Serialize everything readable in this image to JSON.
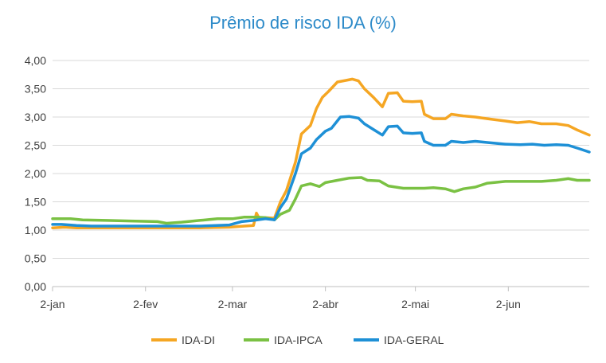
{
  "chart_data": {
    "type": "line",
    "title": "Prêmio de risco IDA (%)",
    "xlabel": "",
    "ylabel": "",
    "ylim": [
      0,
      4
    ],
    "yticks": [
      "0,00",
      "0,50",
      "1,00",
      "1,50",
      "2,00",
      "2,50",
      "3,00",
      "3,50",
      "4,00"
    ],
    "ytick_values": [
      0,
      0.5,
      1,
      1.5,
      2,
      2.5,
      3,
      3.5,
      4
    ],
    "xlim": [
      "2020-01-02",
      "2020-06-29"
    ],
    "xticks": [
      {
        "label": "2-jan",
        "date": "2020-01-02"
      },
      {
        "label": "2-fev",
        "date": "2020-02-02"
      },
      {
        "label": "2-mar",
        "date": "2020-03-02"
      },
      {
        "label": "2-abr",
        "date": "2020-04-02"
      },
      {
        "label": "2-mai",
        "date": "2020-05-02"
      },
      {
        "label": "2-jun",
        "date": "2020-06-02"
      }
    ],
    "grid": "horizontal",
    "legend_position": "bottom",
    "series": [
      {
        "name": "IDA-DI",
        "color": "#f5a623",
        "points": [
          [
            "2020-01-02",
            1.04
          ],
          [
            "2020-01-06",
            1.05
          ],
          [
            "2020-01-10",
            1.04
          ],
          [
            "2020-01-15",
            1.04
          ],
          [
            "2020-01-20",
            1.04
          ],
          [
            "2020-01-25",
            1.04
          ],
          [
            "2020-02-01",
            1.04
          ],
          [
            "2020-02-10",
            1.04
          ],
          [
            "2020-02-20",
            1.04
          ],
          [
            "2020-03-01",
            1.05
          ],
          [
            "2020-03-06",
            1.07
          ],
          [
            "2020-03-09",
            1.08
          ],
          [
            "2020-03-10",
            1.3
          ],
          [
            "2020-03-11",
            1.2
          ],
          [
            "2020-03-13",
            1.22
          ],
          [
            "2020-03-16",
            1.21
          ],
          [
            "2020-03-18",
            1.5
          ],
          [
            "2020-03-20",
            1.7
          ],
          [
            "2020-03-23",
            2.2
          ],
          [
            "2020-03-25",
            2.7
          ],
          [
            "2020-03-28",
            2.85
          ],
          [
            "2020-03-30",
            3.15
          ],
          [
            "2020-04-01",
            3.35
          ],
          [
            "2020-04-03",
            3.45
          ],
          [
            "2020-04-06",
            3.62
          ],
          [
            "2020-04-09",
            3.65
          ],
          [
            "2020-04-11",
            3.67
          ],
          [
            "2020-04-13",
            3.64
          ],
          [
            "2020-04-15",
            3.5
          ],
          [
            "2020-04-18",
            3.35
          ],
          [
            "2020-04-21",
            3.18
          ],
          [
            "2020-04-23",
            3.42
          ],
          [
            "2020-04-26",
            3.43
          ],
          [
            "2020-04-28",
            3.28
          ],
          [
            "2020-05-01",
            3.27
          ],
          [
            "2020-05-04",
            3.28
          ],
          [
            "2020-05-05",
            3.05
          ],
          [
            "2020-05-08",
            2.97
          ],
          [
            "2020-05-12",
            2.97
          ],
          [
            "2020-05-14",
            3.05
          ],
          [
            "2020-05-18",
            3.02
          ],
          [
            "2020-05-22",
            3.0
          ],
          [
            "2020-05-26",
            2.97
          ],
          [
            "2020-06-01",
            2.93
          ],
          [
            "2020-06-05",
            2.9
          ],
          [
            "2020-06-09",
            2.92
          ],
          [
            "2020-06-13",
            2.88
          ],
          [
            "2020-06-18",
            2.88
          ],
          [
            "2020-06-22",
            2.85
          ],
          [
            "2020-06-25",
            2.77
          ],
          [
            "2020-06-29",
            2.68
          ]
        ]
      },
      {
        "name": "IDA-IPCA",
        "color": "#7ac143",
        "points": [
          [
            "2020-01-02",
            1.2
          ],
          [
            "2020-01-08",
            1.2
          ],
          [
            "2020-01-12",
            1.18
          ],
          [
            "2020-01-20",
            1.17
          ],
          [
            "2020-01-28",
            1.16
          ],
          [
            "2020-02-06",
            1.15
          ],
          [
            "2020-02-09",
            1.12
          ],
          [
            "2020-02-14",
            1.14
          ],
          [
            "2020-02-20",
            1.17
          ],
          [
            "2020-02-26",
            1.2
          ],
          [
            "2020-03-02",
            1.2
          ],
          [
            "2020-03-06",
            1.23
          ],
          [
            "2020-03-10",
            1.23
          ],
          [
            "2020-03-13",
            1.22
          ],
          [
            "2020-03-16",
            1.18
          ],
          [
            "2020-03-18",
            1.28
          ],
          [
            "2020-03-21",
            1.35
          ],
          [
            "2020-03-23",
            1.55
          ],
          [
            "2020-03-25",
            1.78
          ],
          [
            "2020-03-28",
            1.82
          ],
          [
            "2020-03-31",
            1.77
          ],
          [
            "2020-04-02",
            1.84
          ],
          [
            "2020-04-06",
            1.88
          ],
          [
            "2020-04-10",
            1.92
          ],
          [
            "2020-04-14",
            1.93
          ],
          [
            "2020-04-16",
            1.88
          ],
          [
            "2020-04-20",
            1.87
          ],
          [
            "2020-04-23",
            1.78
          ],
          [
            "2020-04-28",
            1.74
          ],
          [
            "2020-05-05",
            1.74
          ],
          [
            "2020-05-08",
            1.75
          ],
          [
            "2020-05-12",
            1.73
          ],
          [
            "2020-05-15",
            1.68
          ],
          [
            "2020-05-18",
            1.73
          ],
          [
            "2020-05-22",
            1.76
          ],
          [
            "2020-05-26",
            1.83
          ],
          [
            "2020-06-01",
            1.86
          ],
          [
            "2020-06-08",
            1.86
          ],
          [
            "2020-06-13",
            1.86
          ],
          [
            "2020-06-18",
            1.88
          ],
          [
            "2020-06-22",
            1.91
          ],
          [
            "2020-06-25",
            1.88
          ],
          [
            "2020-06-29",
            1.88
          ]
        ]
      },
      {
        "name": "IDA-GERAL",
        "color": "#1e90d6",
        "points": [
          [
            "2020-01-02",
            1.1
          ],
          [
            "2020-01-05",
            1.1
          ],
          [
            "2020-01-10",
            1.08
          ],
          [
            "2020-01-15",
            1.07
          ],
          [
            "2020-01-20",
            1.07
          ],
          [
            "2020-01-25",
            1.07
          ],
          [
            "2020-02-01",
            1.07
          ],
          [
            "2020-02-10",
            1.07
          ],
          [
            "2020-02-20",
            1.07
          ],
          [
            "2020-03-01",
            1.09
          ],
          [
            "2020-03-05",
            1.15
          ],
          [
            "2020-03-09",
            1.17
          ],
          [
            "2020-03-13",
            1.2
          ],
          [
            "2020-03-16",
            1.18
          ],
          [
            "2020-03-18",
            1.4
          ],
          [
            "2020-03-20",
            1.55
          ],
          [
            "2020-03-23",
            2.0
          ],
          [
            "2020-03-25",
            2.35
          ],
          [
            "2020-03-28",
            2.45
          ],
          [
            "2020-03-30",
            2.6
          ],
          [
            "2020-04-02",
            2.75
          ],
          [
            "2020-04-04",
            2.8
          ],
          [
            "2020-04-07",
            3.0
          ],
          [
            "2020-04-10",
            3.01
          ],
          [
            "2020-04-13",
            2.98
          ],
          [
            "2020-04-15",
            2.88
          ],
          [
            "2020-04-18",
            2.78
          ],
          [
            "2020-04-21",
            2.68
          ],
          [
            "2020-04-23",
            2.83
          ],
          [
            "2020-04-26",
            2.84
          ],
          [
            "2020-04-28",
            2.72
          ],
          [
            "2020-05-01",
            2.71
          ],
          [
            "2020-05-04",
            2.72
          ],
          [
            "2020-05-05",
            2.57
          ],
          [
            "2020-05-08",
            2.5
          ],
          [
            "2020-05-12",
            2.5
          ],
          [
            "2020-05-14",
            2.57
          ],
          [
            "2020-05-18",
            2.55
          ],
          [
            "2020-05-22",
            2.57
          ],
          [
            "2020-05-26",
            2.55
          ],
          [
            "2020-06-01",
            2.52
          ],
          [
            "2020-06-06",
            2.51
          ],
          [
            "2020-06-10",
            2.52
          ],
          [
            "2020-06-14",
            2.5
          ],
          [
            "2020-06-18",
            2.51
          ],
          [
            "2020-06-22",
            2.5
          ],
          [
            "2020-06-25",
            2.45
          ],
          [
            "2020-06-29",
            2.38
          ]
        ]
      }
    ]
  }
}
